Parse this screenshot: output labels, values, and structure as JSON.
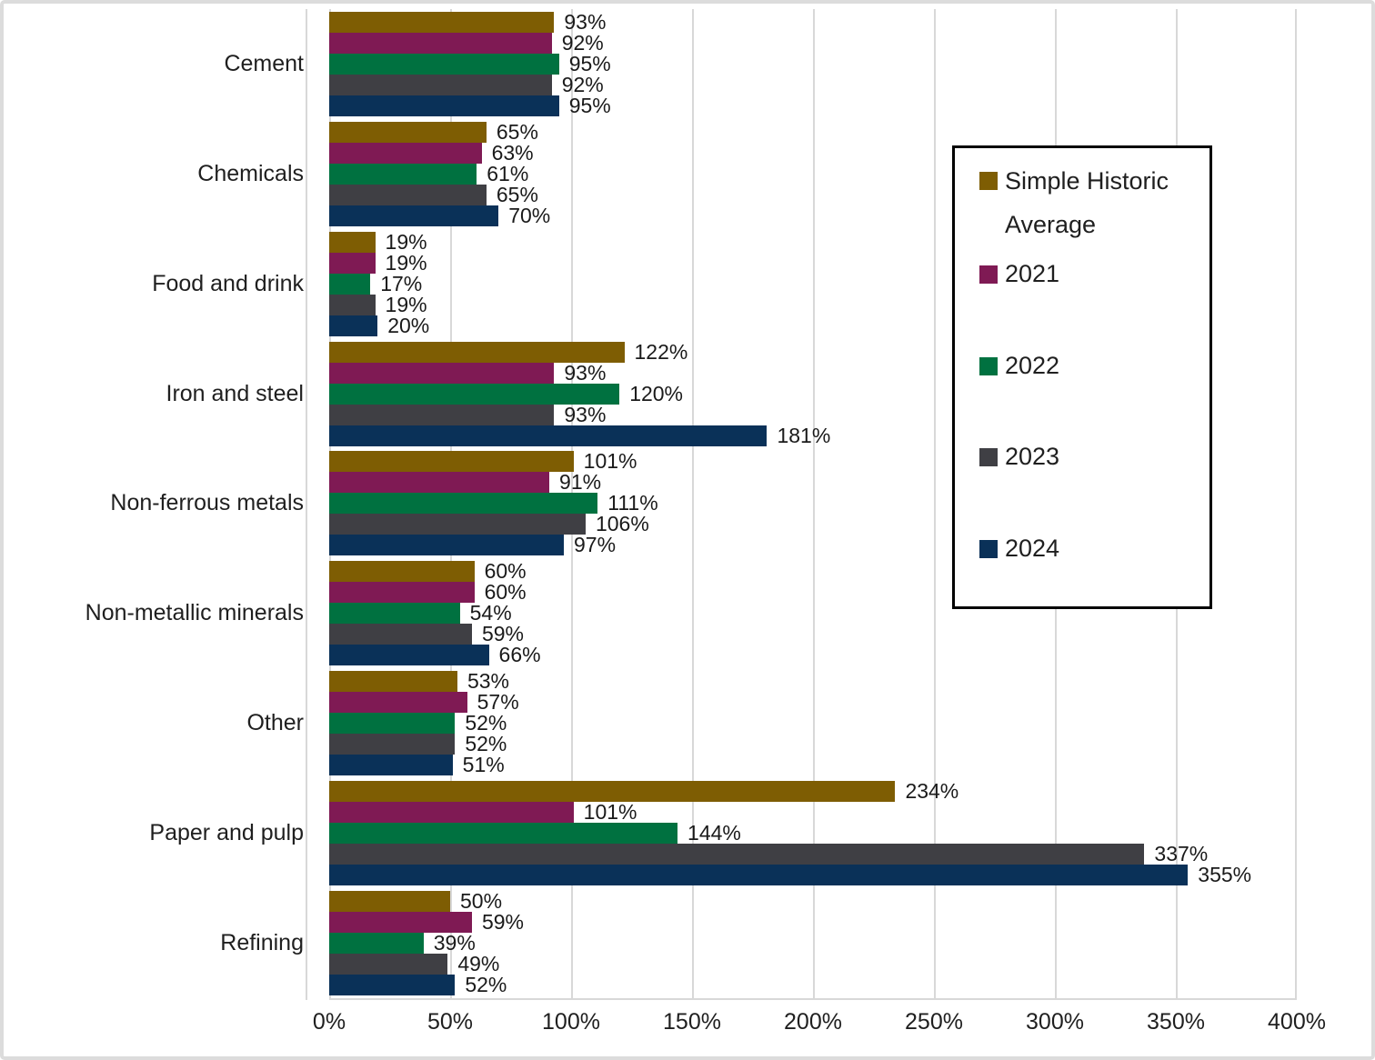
{
  "chart_data": {
    "type": "bar",
    "orientation": "horizontal",
    "title": "",
    "xlabel": "",
    "ylabel": "",
    "value_suffix": "%",
    "grid": true,
    "categories": [
      "Cement",
      "Chemicals",
      "Food and drink",
      "Iron and steel",
      "Non-ferrous metals",
      "Non-metallic minerals",
      "Other",
      "Paper and pulp",
      "Refining"
    ],
    "series": [
      {
        "name": "Simple Historic Average",
        "color": "#7E5D03",
        "values": [
          93,
          65,
          19,
          122,
          101,
          60,
          53,
          234,
          50
        ]
      },
      {
        "name": "2021",
        "color": "#7F1A54",
        "values": [
          92,
          63,
          19,
          93,
          91,
          60,
          57,
          101,
          59
        ]
      },
      {
        "name": "2022",
        "color": "#007140",
        "values": [
          95,
          61,
          17,
          120,
          111,
          54,
          52,
          144,
          39
        ]
      },
      {
        "name": "2023",
        "color": "#3F3F44",
        "values": [
          92,
          65,
          19,
          93,
          106,
          59,
          52,
          337,
          49
        ]
      },
      {
        "name": "2024",
        "color": "#0A3158",
        "values": [
          95,
          70,
          20,
          181,
          97,
          66,
          51,
          355,
          52
        ]
      }
    ],
    "x_axis": {
      "min": 0,
      "max": 400,
      "tick_step": 50,
      "ticks": [
        "0%",
        "50%",
        "100%",
        "150%",
        "200%",
        "250%",
        "300%",
        "350%",
        "400%"
      ]
    },
    "legend": {
      "position": "right-overlay",
      "items": [
        "Simple Historic Average",
        "2021",
        "2022",
        "2023",
        "2024"
      ]
    },
    "colors": {
      "gridline": "#d8d8d8",
      "text": "#1f1f1f",
      "frame_border": "#dcdcdc",
      "legend_border": "#000000"
    }
  }
}
